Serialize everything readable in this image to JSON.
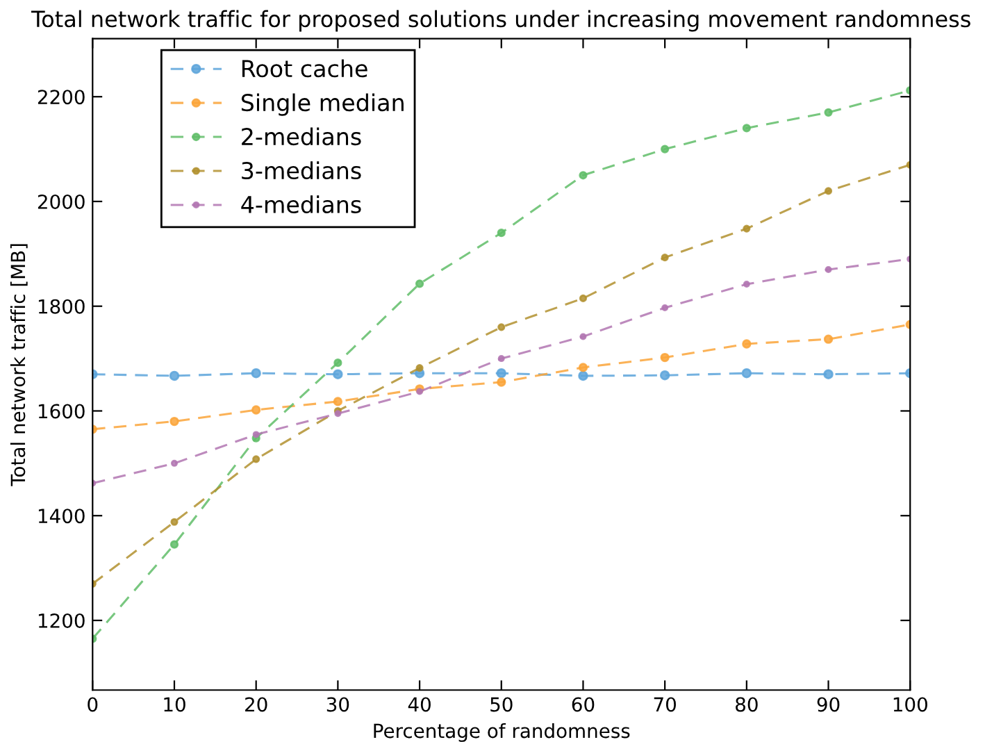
{
  "chart_data": {
    "type": "line",
    "title": "Total network traffic for proposed solutions under increasing movement randomness",
    "xlabel": "Percentage of randomness",
    "ylabel": "Total network traffic [MB]",
    "x": [
      0,
      10,
      20,
      30,
      40,
      50,
      60,
      70,
      80,
      90,
      100
    ],
    "series": [
      {
        "name": "Root cache",
        "color": "#5da5da",
        "values": [
          1670,
          1667,
          1672,
          1670,
          1672,
          1672,
          1667,
          1668,
          1672,
          1670,
          1672
        ]
      },
      {
        "name": "Single median",
        "color": "#faa43a",
        "values": [
          1565,
          1580,
          1602,
          1618,
          1642,
          1655,
          1683,
          1702,
          1728,
          1737,
          1765
        ]
      },
      {
        "name": "2-medians",
        "color": "#60bd68",
        "values": [
          1165,
          1345,
          1548,
          1692,
          1843,
          1940,
          2050,
          2100,
          2140,
          2170,
          2212
        ]
      },
      {
        "name": "3-medians",
        "color": "#b2912f",
        "values": [
          1270,
          1388,
          1508,
          1600,
          1682,
          1760,
          1815,
          1893,
          1948,
          2020,
          2070
        ]
      },
      {
        "name": "4-medians",
        "color": "#b276b2",
        "values": [
          1462,
          1500,
          1555,
          1595,
          1637,
          1700,
          1742,
          1797,
          1842,
          1870,
          1890
        ]
      }
    ],
    "xlim": [
      0,
      100
    ],
    "xticks": [
      0,
      10,
      20,
      30,
      40,
      50,
      60,
      70,
      80,
      90,
      100
    ],
    "ylim": [
      1067,
      2311
    ],
    "yticks": [
      1200,
      1400,
      1600,
      1800,
      2000,
      2200
    ],
    "legend": "top left",
    "marker": "circle",
    "line_style": "dashed"
  }
}
